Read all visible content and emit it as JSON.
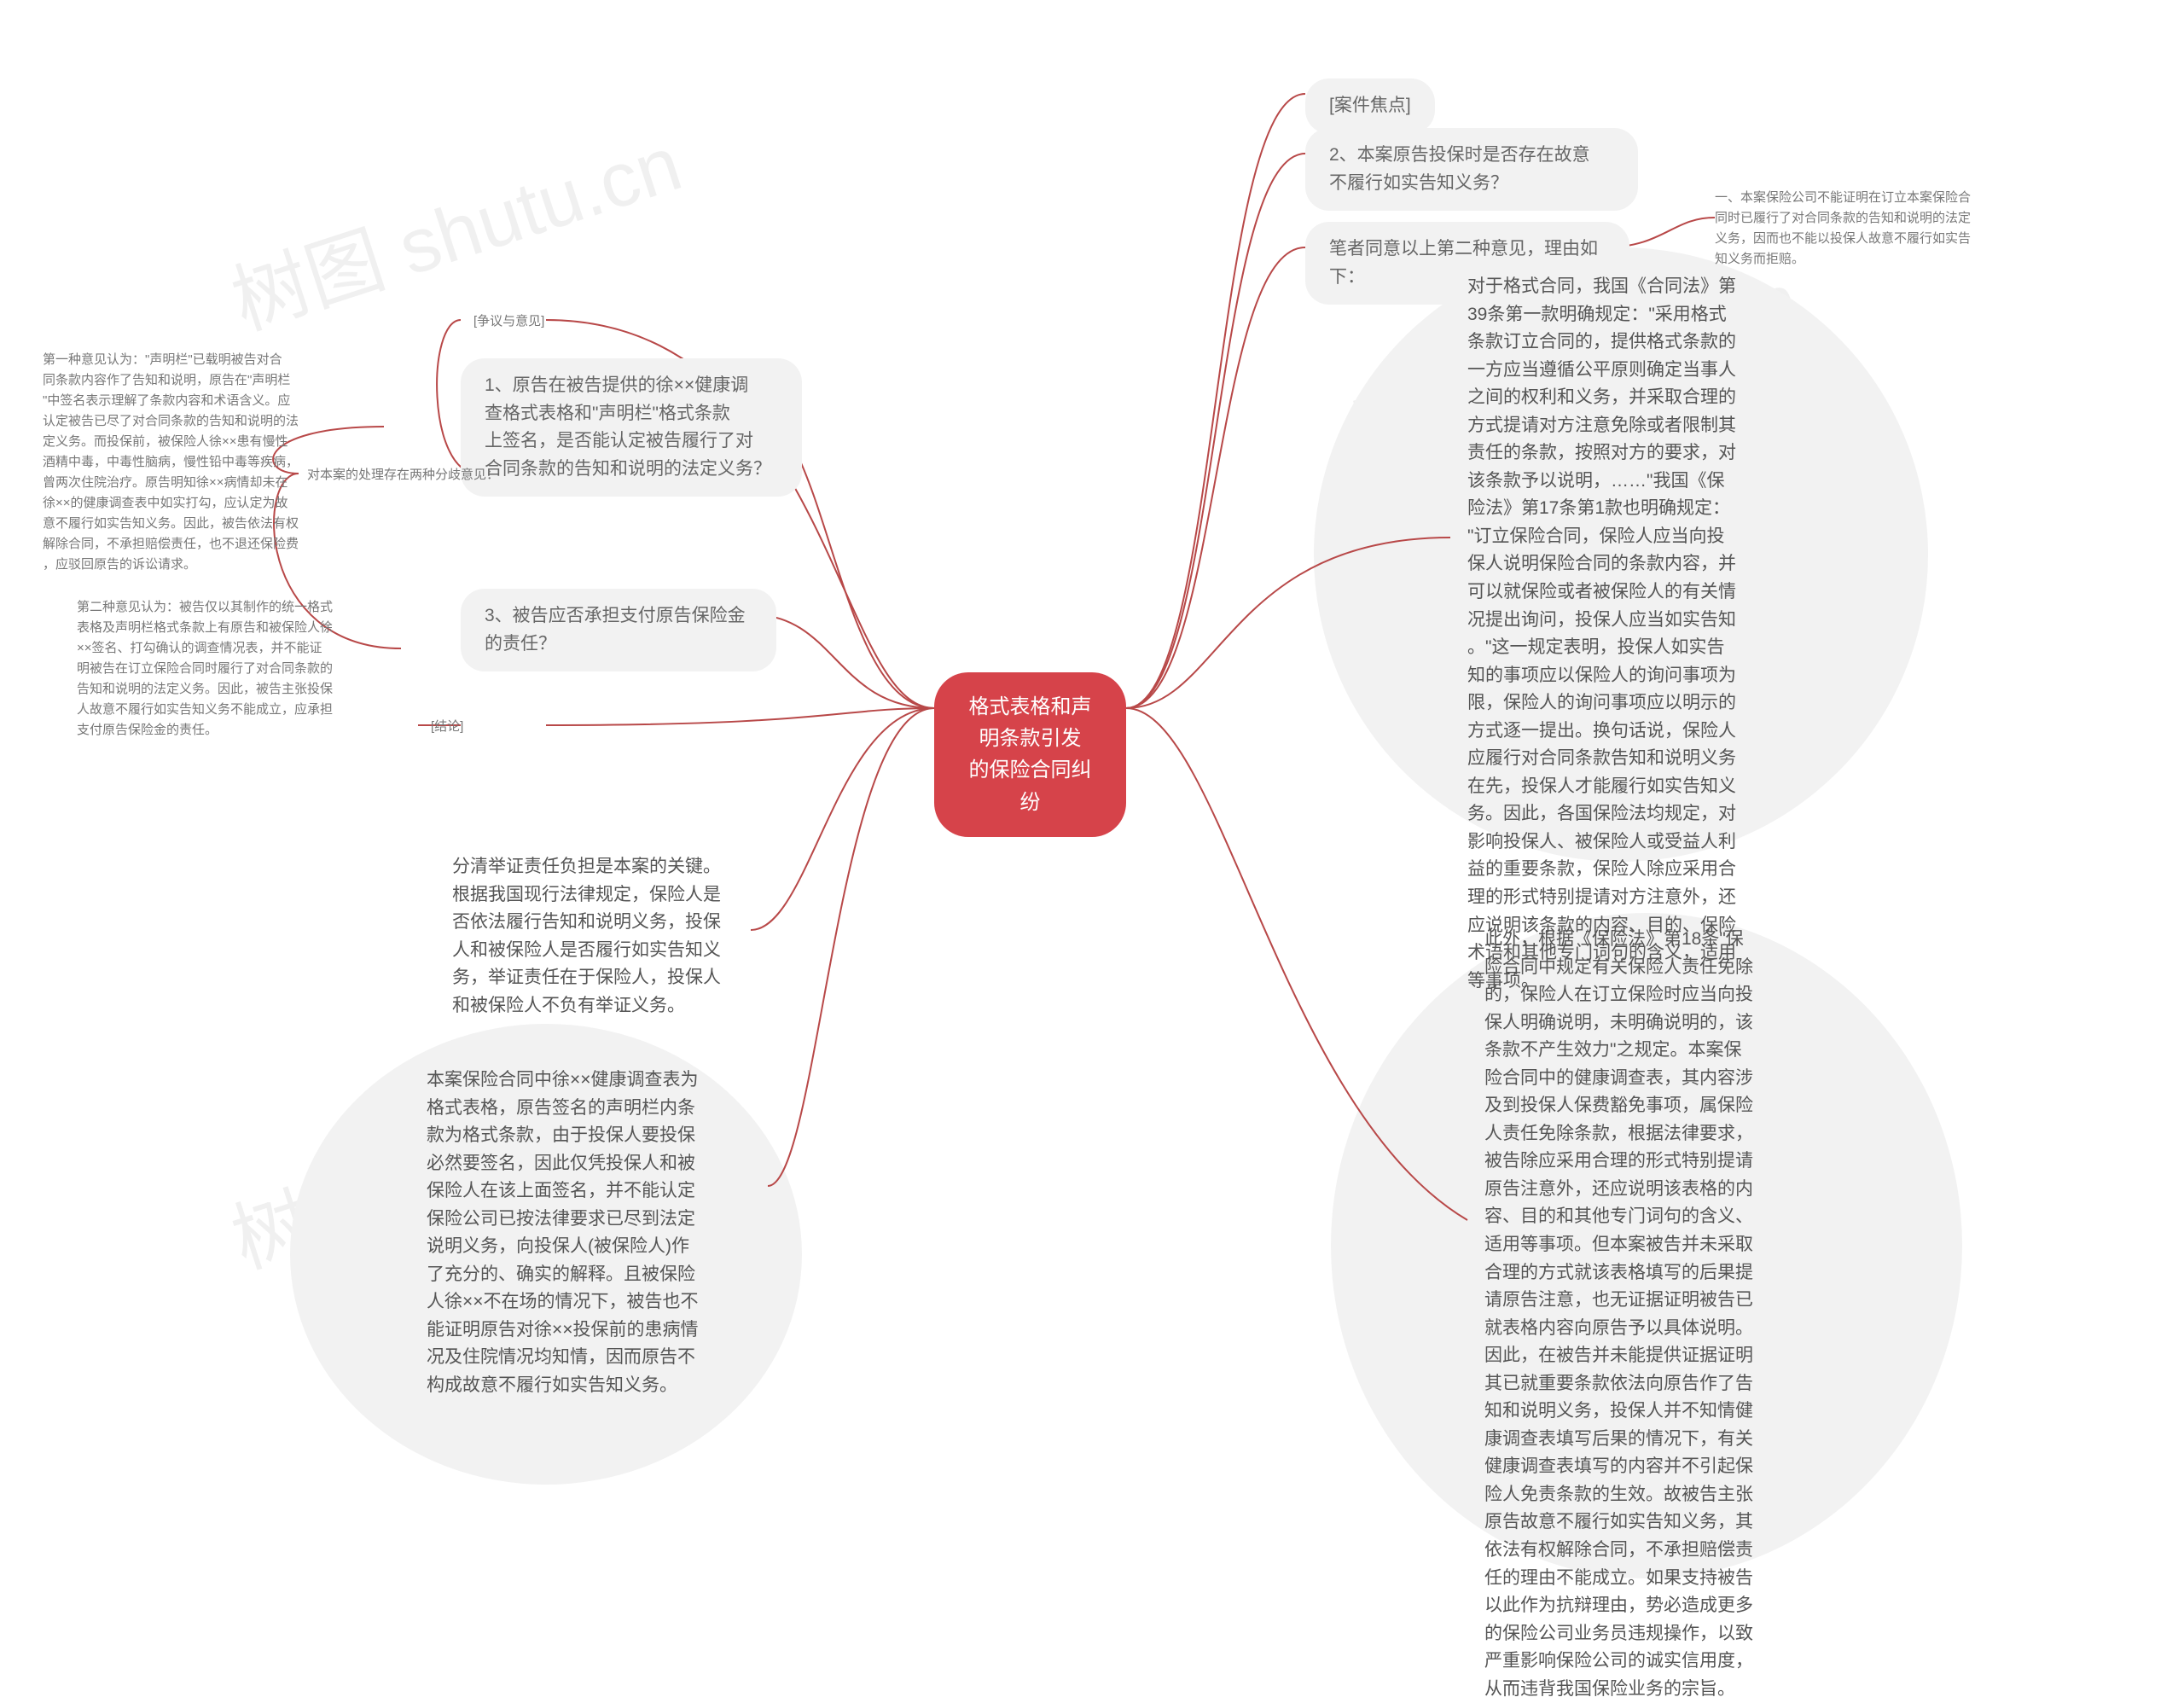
{
  "watermark": "树图 shutu.cn",
  "center": "格式表格和声明条款引发\n的保险合同纠纷",
  "right": {
    "focus": "[案件焦点]",
    "q2": "2、本案原告投保时是否存在故意\n不履行如实告知义务？",
    "author_agree": "笔者同意以上第二种意见，理由如\n下：",
    "reason1": "一、本案保险公司不能证明在订立本案保险合\n同时已履行了对合同条款的告知和说明的法定\n义务，因而也不能以投保人故意不履行如实告\n知义务而拒赔。",
    "long1": "对于格式合同，我国《合同法》第\n39条第一款明确规定：\"采用格式\n条款订立合同的，提供格式条款的\n一方应当遵循公平原则确定当事人\n之间的权利和义务，并采取合理的\n方式提请对方注意免除或者限制其\n责任的条款，按照对方的要求，对\n该条款予以说明，……\"我国《保\n险法》第17条第1款也明确规定：\n\"订立保险合同，保险人应当向投\n保人说明保险合同的条款内容，并\n可以就保险或者被保险人的有关情\n况提出询问，投保人应当如实告知\n。\"这一规定表明，投保人如实告\n知的事项应以保险人的询问事项为\n限，保险人的询问事项应以明示的\n方式逐一提出。换句话说，保险人\n应履行对合同条款告知和说明义务\n在先，投保人才能履行如实告知义\n务。因此，各国保险法均规定，对\n影响投保人、被保险人或受益人利\n益的重要条款，保险人除应采用合\n理的形式特别提请对方注意外，还\n应说明该条款的内容、目的、保险\n术语和其他专门词句的含义，适用\n等事项。",
    "long2": "此外，根据《保险法》第18条\"保\n险合同中规定有关保险人责任免除\n的，保险人在订立保险时应当向投\n保人明确说明，未明确说明的，该\n条款不产生效力\"之规定。本案保\n险合同中的健康调查表，其内容涉\n及到投保人保费豁免事项，属保险\n人责任免除条款，根据法律要求，\n被告除应采用合理的形式特别提请\n原告注意外，还应说明该表格的内\n容、目的和其他专门词句的含义、\n适用等事项。但本案被告并未采取\n合理的方式就该表格填写的后果提\n请原告注意，也无证据证明被告已\n就表格内容向原告予以具体说明。\n因此，在被告并未能提供证据证明\n其已就重要条款依法向原告作了告\n知和说明义务，投保人并不知情健\n康调查表填写后果的情况下，有关\n健康调查表填写的内容并不引起保\n险人免责条款的生效。故被告主张\n原告故意不履行如实告知义务，其\n依法有权解除合同，不承担赔偿责\n任的理由不能成立。如果支持被告\n以此作为抗辩理由，势必造成更多\n的保险公司业务员违规操作，以致\n严重影响保险公司的诚实信用度，\n从而违背我国保险业务的宗旨。"
  },
  "left": {
    "q1": "1、原告在被告提供的徐××健康调\n查格式表格和\"声明栏\"格式条款\n上签名，是否能认定被告履行了对\n合同条款的告知和说明的法定义务？",
    "controversy": "[争议与意见]",
    "two_views": "对本案的处理存在两种分歧意见：",
    "view1": "第一种意见认为：\"声明栏\"已载明被告对合\n同条款内容作了告知和说明，原告在\"声明栏\n\"中签名表示理解了条款内容和术语含义。应\n认定被告已尽了对合同条款的告知和说明的法\n定义务。而投保前，被保险人徐××患有慢性\n酒精中毒，中毒性脑病，慢性铅中毒等疾病，\n曾两次住院治疗。原告明知徐××病情却未在\n徐××的健康调查表中如实打勾，应认定为故\n意不履行如实告知义务。因此，被告依法有权\n解除合同，不承担赔偿责任，也不退还保险费\n，应驳回原告的诉讼请求。",
    "view2": "第二种意见认为：被告仅以其制作的统一格式\n表格及声明栏格式条款上有原告和被保险人徐\n××签名、打勾确认的调查情况表，并不能证\n明被告在订立保险合同时履行了对合同条款的\n告知和说明的法定义务。因此，被告主张投保\n人故意不履行如实告知义务不能成立，应承担\n支付原告保险金的责任。",
    "q3": "3、被告应否承担支付原告保险金\n的责任？",
    "conclusion_label": "[结论]",
    "conclusion": "分清举证责任负担是本案的关键。\n根据我国现行法律规定，保险人是\n否依法履行告知和说明义务，投保\n人和被保险人是否履行如实告知义\n务，举证责任在于保险人，投保人\n和被保险人不负有举证义务。",
    "detail": "本案保险合同中徐××健康调查表为\n格式表格，原告签名的声明栏内条\n款为格式条款，由于投保人要投保\n必然要签名，因此仅凭投保人和被\n保险人在该上面签名，并不能认定\n保险公司已按法律要求已尽到法定\n说明义务，向投保人(被保险人)作\n了充分的、确实的解释。且被保险\n人徐××不在场的情况下，被告也不\n能证明原告对徐××投保前的患病情\n况及住院情况均知情，因而原告不\n构成故意不履行如实告知义务。"
  },
  "style": {
    "background": "#ffffff",
    "center_bg": "#d6434a",
    "center_color": "#ffffff",
    "pill_bg": "#f2f2f2",
    "text_color": "#555555",
    "small_color": "#777777",
    "connector_color": "#b84848",
    "font_base": 21,
    "font_small": 15,
    "font_center": 24
  }
}
